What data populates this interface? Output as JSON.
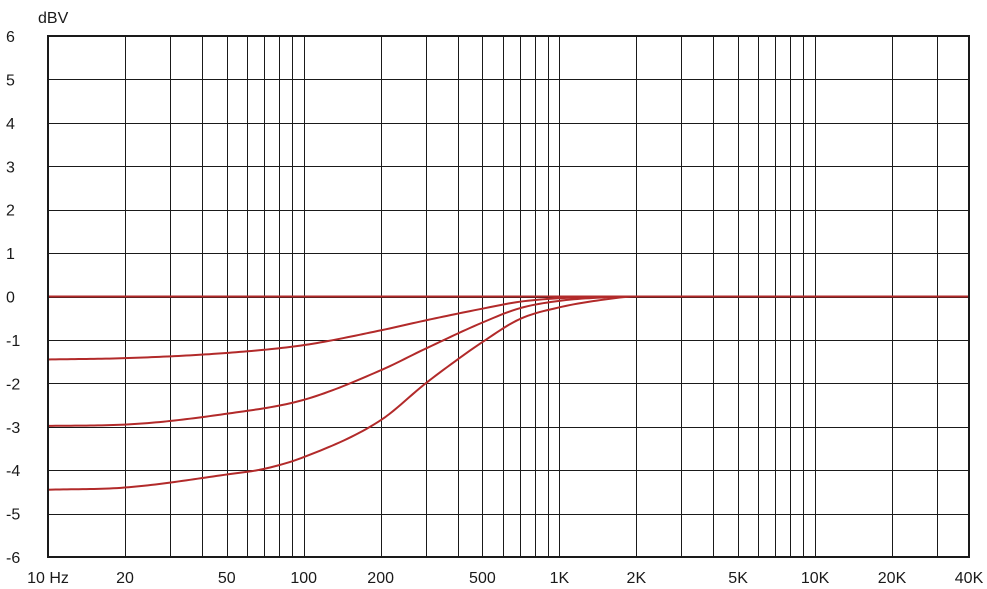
{
  "chart_data": {
    "type": "line",
    "title": "",
    "xlabel": "",
    "ylabel": "dBV",
    "x_scale": "log",
    "xlim": [
      10,
      40000
    ],
    "ylim": [
      -6,
      6
    ],
    "grid": true,
    "x_tick_labels": [
      {
        "value": 10,
        "label": "10 Hz"
      },
      {
        "value": 20,
        "label": "20"
      },
      {
        "value": 50,
        "label": "50"
      },
      {
        "value": 100,
        "label": "100"
      },
      {
        "value": 200,
        "label": "200"
      },
      {
        "value": 500,
        "label": "500"
      },
      {
        "value": 1000,
        "label": "1K"
      },
      {
        "value": 2000,
        "label": "2K"
      },
      {
        "value": 5000,
        "label": "5K"
      },
      {
        "value": 10000,
        "label": "10K"
      },
      {
        "value": 20000,
        "label": "20K"
      },
      {
        "value": 40000,
        "label": "40K"
      }
    ],
    "x_grid_values": [
      10,
      20,
      30,
      40,
      50,
      60,
      70,
      80,
      90,
      100,
      200,
      300,
      400,
      500,
      600,
      700,
      800,
      900,
      1000,
      2000,
      3000,
      4000,
      5000,
      6000,
      7000,
      8000,
      9000,
      10000,
      20000,
      30000,
      40000
    ],
    "y_ticks": [
      6,
      5,
      4,
      3,
      2,
      1,
      0,
      -1,
      -2,
      -3,
      -4,
      -5,
      -6
    ],
    "line_color": "#b22a2a",
    "series": [
      {
        "x": [
          10,
          40000
        ],
        "y": [
          0,
          0
        ]
      },
      {
        "x": [
          10,
          20,
          50,
          100,
          200,
          300,
          500,
          700,
          1000,
          1500,
          2000,
          5000,
          10000,
          40000
        ],
        "y": [
          -1.45,
          -1.42,
          -1.3,
          -1.12,
          -0.78,
          -0.55,
          -0.28,
          -0.12,
          -0.04,
          -0.01,
          0,
          0,
          0,
          0
        ]
      },
      {
        "x": [
          10,
          20,
          50,
          100,
          200,
          300,
          500,
          700,
          1000,
          1500,
          2000,
          5000,
          10000,
          40000
        ],
        "y": [
          -2.98,
          -2.95,
          -2.7,
          -2.38,
          -1.7,
          -1.2,
          -0.6,
          -0.27,
          -0.1,
          -0.02,
          0,
          0,
          0,
          0
        ]
      },
      {
        "x": [
          10,
          20,
          50,
          70,
          100,
          200,
          300,
          400,
          500,
          700,
          1000,
          1500,
          2000,
          5000,
          10000,
          40000
        ],
        "y": [
          -4.45,
          -4.4,
          -4.1,
          -3.97,
          -3.7,
          -2.85,
          -2.0,
          -1.45,
          -1.05,
          -0.52,
          -0.25,
          -0.07,
          0,
          0,
          0,
          0
        ]
      }
    ]
  }
}
